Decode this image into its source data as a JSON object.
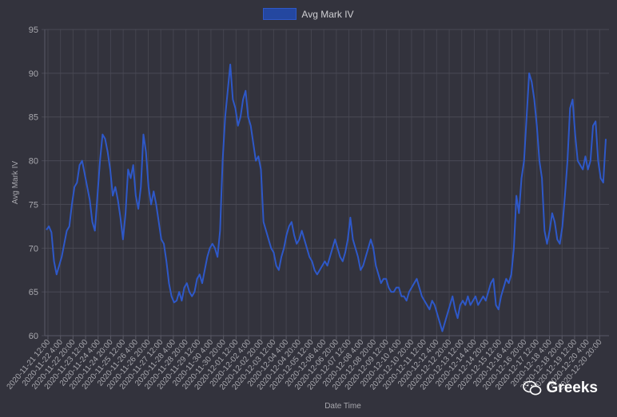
{
  "watermark": "Greeks",
  "chart_data": {
    "type": "line",
    "xlabel": "Date Time",
    "ylabel": "Avg Mark IV",
    "ylim": [
      60,
      95
    ],
    "yticks": [
      60,
      65,
      70,
      75,
      80,
      85,
      90,
      95
    ],
    "grid": true,
    "legend": "top-center",
    "line_color": "#2e58c8",
    "series": [
      {
        "name": "Avg Mark IV",
        "values": [
          72.1,
          72.5,
          71.8,
          68.5,
          67.0,
          68.0,
          69.0,
          70.5,
          72.0,
          72.5,
          75.0,
          77.0,
          77.5,
          79.5,
          80.0,
          78.5,
          77.0,
          75.5,
          73.0,
          72.0,
          76.0,
          80.0,
          83.0,
          82.5,
          81.0,
          79.0,
          76.0,
          77.0,
          75.5,
          73.5,
          71.0,
          74.0,
          79.0,
          78.0,
          79.5,
          76.0,
          74.5,
          77.0,
          83.0,
          81.0,
          77.0,
          75.0,
          76.5,
          75.0,
          73.0,
          71.0,
          70.5,
          68.5,
          66.0,
          64.5,
          63.8,
          64.0,
          65.0,
          64.0,
          65.5,
          66.0,
          65.0,
          64.5,
          65.0,
          66.5,
          67.0,
          66.0,
          67.5,
          69.0,
          70.0,
          70.5,
          70.0,
          69.0,
          72.0,
          80.0,
          85.0,
          88.0,
          91.0,
          87.0,
          86.0,
          84.0,
          85.0,
          87.0,
          88.0,
          85.0,
          84.0,
          82.0,
          80.0,
          80.5,
          79.0,
          73.0,
          72.0,
          71.0,
          70.0,
          69.5,
          68.0,
          67.5,
          69.0,
          70.0,
          71.5,
          72.5,
          73.0,
          71.5,
          70.5,
          71.0,
          72.0,
          71.0,
          70.0,
          69.0,
          68.5,
          67.5,
          67.0,
          67.5,
          68.0,
          68.5,
          68.0,
          69.0,
          70.0,
          71.0,
          70.0,
          69.0,
          68.5,
          69.5,
          71.0,
          73.5,
          71.0,
          70.0,
          69.0,
          67.5,
          68.0,
          69.0,
          70.0,
          71.0,
          70.0,
          68.0,
          67.0,
          66.0,
          66.5,
          66.5,
          65.5,
          65.0,
          65.0,
          65.5,
          65.5,
          64.5,
          64.5,
          64.0,
          65.0,
          65.5,
          66.0,
          66.5,
          65.5,
          64.5,
          64.0,
          63.5,
          63.0,
          64.0,
          63.5,
          62.5,
          61.5,
          60.5,
          61.5,
          62.5,
          63.5,
          64.5,
          63.0,
          62.0,
          63.5,
          64.0,
          63.5,
          64.5,
          63.5,
          64.0,
          64.5,
          63.5,
          64.0,
          64.5,
          64.0,
          65.0,
          66.0,
          66.5,
          63.5,
          63.0,
          64.5,
          65.5,
          66.5,
          66.0,
          67.0,
          70.0,
          76.0,
          74.0,
          78.0,
          80.0,
          85.0,
          90.0,
          89.0,
          87.0,
          84.0,
          80.0,
          78.0,
          72.0,
          70.5,
          72.0,
          74.0,
          73.0,
          71.0,
          70.5,
          72.5,
          76.0,
          80.0,
          86.0,
          87.0,
          83.0,
          80.0,
          79.5,
          79.0,
          80.5,
          79.0,
          80.0,
          84.0,
          84.5,
          80.0,
          78.0,
          77.5,
          82.5
        ]
      }
    ],
    "tick_labels": [
      "2020-11-21 12:00",
      "2020-11-22 4:00",
      "2020-11-22 20:00",
      "2020-11-23 12:00",
      "2020-11-24 4:00",
      "2020-11-24 20:00",
      "2020-11-25 12:00",
      "2020-11-26 4:00",
      "2020-11-26 20:00",
      "2020-11-27 12:00",
      "2020-11-28 4:00",
      "2020-11-28 20:00",
      "2020-11-29 12:00",
      "2020-11-30 4:00",
      "2020-11-30 20:00",
      "2020-12-01 12:00",
      "2020-12-02 4:00",
      "2020-12-02 20:00",
      "2020-12-03 12:00",
      "2020-12-04 4:00",
      "2020-12-04 20:00",
      "2020-12-05 12:00",
      "2020-12-06 4:00",
      "2020-12-06 20:00",
      "2020-12-07 12:00",
      "2020-12-08 4:00",
      "2020-12-08 20:00",
      "2020-12-09 12:00",
      "2020-12-10 4:00",
      "2020-12-10 20:00",
      "2020-12-11 12:00",
      "2020-12-12 4:00",
      "2020-12-12 20:00",
      "2020-12-13 12:00",
      "2020-12-14 4:00",
      "2020-12-14 20:00",
      "2020-12-15 12:00",
      "2020-12-16 4:00",
      "2020-12-16 20:00",
      "2020-12-17 12:00",
      "2020-12-18 4:00",
      "2020-12-18 20:00",
      "2020-12-19 12:00",
      "2020-12-20 4:00",
      "2020-12-20 20:00"
    ]
  }
}
